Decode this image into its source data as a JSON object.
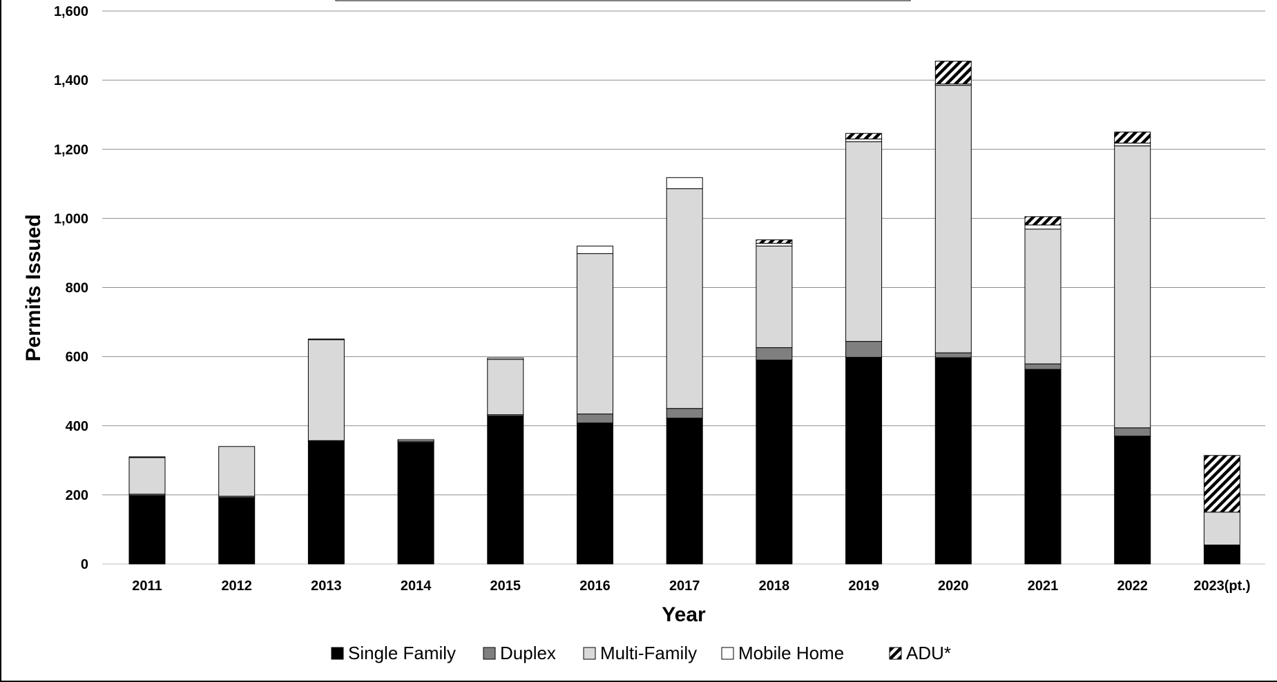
{
  "chart_data": {
    "type": "bar",
    "stacked": true,
    "title": "",
    "xlabel": "Year",
    "ylabel": "Permits Issued",
    "ylim": [
      0,
      1600
    ],
    "yticks": [
      0,
      200,
      400,
      600,
      800,
      1000,
      1200,
      1400,
      1600
    ],
    "ytick_labels": [
      "0",
      "200",
      "400",
      "600",
      "800",
      "1,000",
      "1,200",
      "1,400",
      "1,600"
    ],
    "grid": true,
    "legend_position": "bottom",
    "categories": [
      "2011",
      "2012",
      "2013",
      "2014",
      "2015",
      "2016",
      "2017",
      "2018",
      "2019",
      "2020",
      "2021",
      "2022",
      "2023(pt.)"
    ],
    "series": [
      {
        "name": "Single Family",
        "color": "#000000",
        "pattern": "solid",
        "values": [
          198,
          192,
          355,
          352,
          428,
          408,
          422,
          590,
          598,
          597,
          563,
          370,
          55
        ]
      },
      {
        "name": "Duplex",
        "color": "#7f7f7f",
        "pattern": "solid",
        "values": [
          4,
          4,
          2,
          4,
          4,
          26,
          28,
          36,
          46,
          14,
          16,
          24,
          0
        ]
      },
      {
        "name": "Multi-Family",
        "color": "#d9d9d9",
        "pattern": "solid",
        "values": [
          106,
          144,
          292,
          0,
          160,
          464,
          636,
          294,
          578,
          774,
          390,
          816,
          95
        ]
      },
      {
        "name": "Mobile Home",
        "color": "#ffffff",
        "pattern": "solid",
        "values": [
          2,
          0,
          2,
          4,
          4,
          22,
          32,
          8,
          8,
          4,
          12,
          8,
          0
        ]
      },
      {
        "name": "ADU*",
        "color": "#000000",
        "pattern": "hatch",
        "values": [
          0,
          0,
          0,
          0,
          0,
          0,
          0,
          10,
          16,
          66,
          24,
          32,
          164
        ]
      }
    ]
  }
}
